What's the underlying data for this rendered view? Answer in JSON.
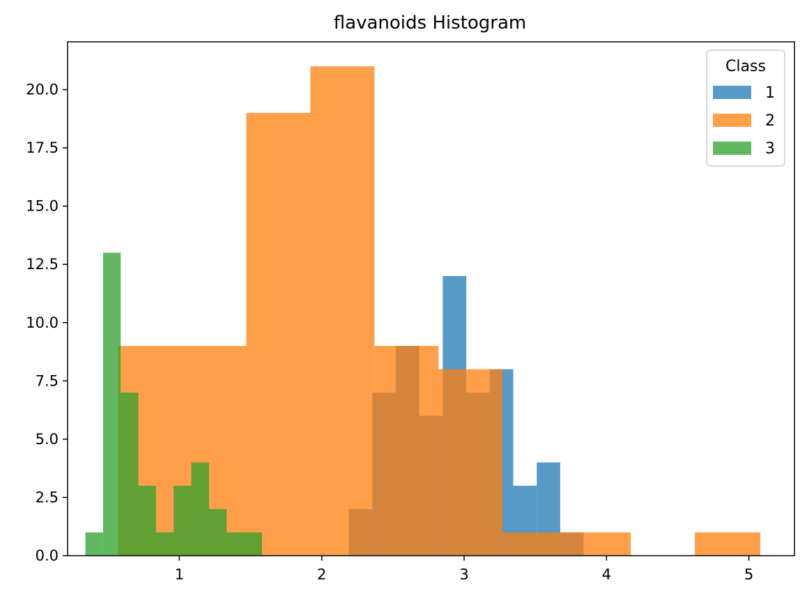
{
  "chart_data": {
    "type": "histogram",
    "title": "flavanoids Histogram",
    "xlabel": "",
    "ylabel": "",
    "xlim": [
      0.215,
      5.32
    ],
    "ylim": [
      0,
      22.05
    ],
    "x_ticks": [
      1,
      2,
      3,
      4,
      5
    ],
    "x_tick_labels": [
      "1",
      "2",
      "3",
      "4",
      "5"
    ],
    "y_ticks": [
      0,
      2.5,
      5,
      7.5,
      10,
      12.5,
      15,
      17.5,
      20
    ],
    "y_tick_labels": [
      "0.0",
      "2.5",
      "5.0",
      "7.5",
      "10.0",
      "12.5",
      "15.0",
      "17.5",
      "20.0"
    ],
    "grid": false,
    "legend": {
      "title": "Class",
      "position": "top-right"
    },
    "series": [
      {
        "name": "1",
        "color": "#1f77b4",
        "opacity": 0.75,
        "bin_edges": [
          2.19,
          2.355,
          2.52,
          2.685,
          2.85,
          3.015,
          3.18,
          3.345,
          3.51,
          3.675,
          3.84
        ],
        "counts": [
          2,
          7,
          9,
          6,
          12,
          7,
          8,
          3,
          4,
          1
        ]
      },
      {
        "name": "2",
        "color": "#ff7f0e",
        "opacity": 0.75,
        "bin_edges": [
          0.57,
          1.02,
          1.47,
          1.92,
          2.37,
          2.82,
          3.27,
          3.72,
          4.17,
          4.62,
          5.08
        ],
        "counts": [
          9,
          9,
          19,
          21,
          9,
          8,
          1,
          1,
          0,
          1
        ]
      },
      {
        "name": "3",
        "color": "#2ca02c",
        "opacity": 0.75,
        "bin_edges": [
          0.34,
          0.464,
          0.588,
          0.712,
          0.836,
          0.96,
          1.084,
          1.208,
          1.332,
          1.456,
          1.58
        ],
        "counts": [
          1,
          13,
          7,
          3,
          1,
          3,
          4,
          2,
          1,
          1
        ]
      }
    ]
  }
}
